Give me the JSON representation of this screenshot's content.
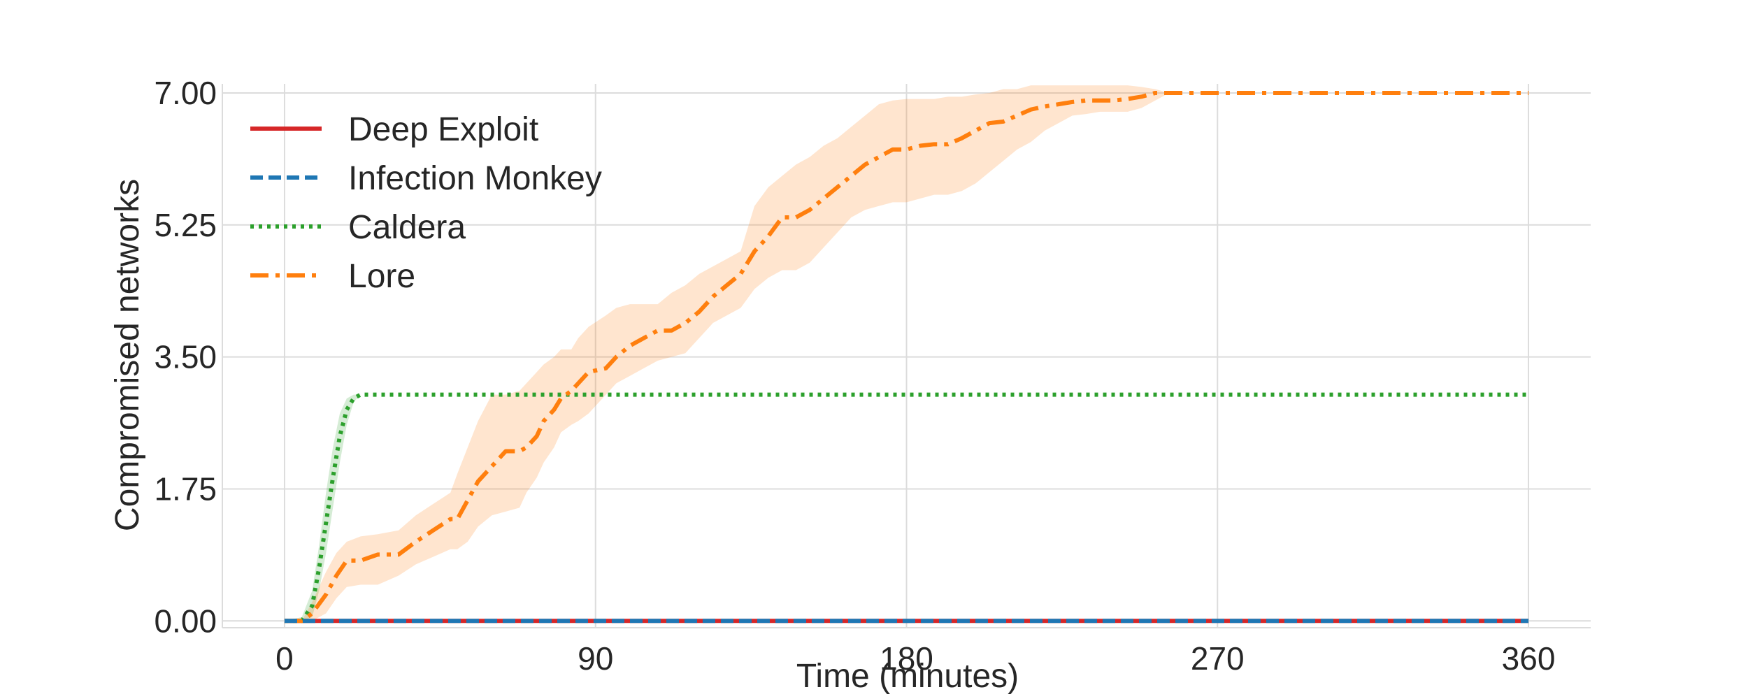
{
  "chart_data": {
    "type": "line",
    "title": "",
    "xlabel": "Time (minutes)",
    "ylabel": "Compromised networks",
    "xlim": [
      -18,
      378
    ],
    "ylim": [
      -0.09,
      7.12
    ],
    "xticks": [
      0,
      90,
      180,
      270,
      360
    ],
    "xtick_labels": [
      "0",
      "90",
      "180",
      "270",
      "360"
    ],
    "yticks": [
      0,
      1.75,
      3.5,
      5.25,
      7.0
    ],
    "ytick_labels": [
      "0.00",
      "1.75",
      "3.50",
      "5.25",
      "7.00"
    ],
    "grid": true,
    "legend_position": "top-left",
    "series": [
      {
        "name": "Deep Exploit",
        "color": "#d62728",
        "dash": "solid",
        "x": [
          0,
          360
        ],
        "y": [
          0,
          0
        ]
      },
      {
        "name": "Infection Monkey",
        "color": "#1f77b4",
        "dash": "dashed",
        "x": [
          0,
          360
        ],
        "y": [
          0,
          0
        ]
      },
      {
        "name": "Caldera",
        "color": "#2ca02c",
        "dash": "dotted",
        "x": [
          0,
          5,
          8,
          10,
          12,
          14,
          16,
          18,
          20,
          22,
          360
        ],
        "y": [
          0,
          0,
          0.2,
          0.7,
          1.3,
          1.9,
          2.45,
          2.8,
          2.95,
          3.0,
          3.0
        ],
        "band_upper": [
          0,
          0.05,
          0.4,
          1.0,
          1.7,
          2.3,
          2.75,
          2.95,
          3.0,
          3.0,
          3.0
        ],
        "band_lower": [
          0,
          0,
          0.05,
          0.4,
          0.9,
          1.5,
          2.1,
          2.6,
          2.9,
          3.0,
          3.0
        ]
      },
      {
        "name": "Lore",
        "color": "#ff7f0e",
        "dash": "dashdot",
        "x": [
          0,
          5,
          8,
          12,
          15,
          18,
          22,
          27,
          33,
          38,
          43,
          48,
          50,
          53,
          56,
          60,
          64,
          68,
          70,
          73,
          75,
          78,
          80,
          83,
          85,
          88,
          93,
          96,
          100,
          104,
          108,
          112,
          116,
          120,
          124,
          128,
          132,
          136,
          140,
          144,
          148,
          152,
          156,
          160,
          164,
          168,
          172,
          176,
          180,
          184,
          188,
          192,
          196,
          200,
          204,
          208,
          212,
          216,
          220,
          224,
          228,
          232,
          236,
          240,
          244,
          248,
          252,
          256,
          360
        ],
        "y": [
          0,
          0,
          0.1,
          0.35,
          0.6,
          0.8,
          0.8,
          0.88,
          0.88,
          1.05,
          1.2,
          1.35,
          1.35,
          1.6,
          1.85,
          2.05,
          2.25,
          2.25,
          2.3,
          2.45,
          2.65,
          2.8,
          2.95,
          3.05,
          3.15,
          3.3,
          3.35,
          3.5,
          3.65,
          3.75,
          3.85,
          3.85,
          3.95,
          4.1,
          4.3,
          4.45,
          4.6,
          4.9,
          5.1,
          5.35,
          5.35,
          5.45,
          5.6,
          5.75,
          5.9,
          6.05,
          6.15,
          6.25,
          6.25,
          6.3,
          6.32,
          6.32,
          6.4,
          6.5,
          6.6,
          6.62,
          6.7,
          6.78,
          6.82,
          6.85,
          6.88,
          6.9,
          6.9,
          6.9,
          6.92,
          6.95,
          7.0,
          7.0,
          7.0
        ],
        "band_upper": [
          0,
          0,
          0.25,
          0.65,
          0.9,
          1.05,
          1.12,
          1.15,
          1.2,
          1.4,
          1.55,
          1.7,
          1.95,
          2.3,
          2.65,
          3.0,
          3.0,
          3.05,
          3.15,
          3.3,
          3.4,
          3.5,
          3.6,
          3.6,
          3.75,
          3.9,
          4.05,
          4.15,
          4.2,
          4.2,
          4.2,
          4.35,
          4.45,
          4.6,
          4.7,
          4.8,
          4.9,
          5.5,
          5.75,
          5.9,
          6.05,
          6.15,
          6.3,
          6.4,
          6.55,
          6.7,
          6.85,
          6.9,
          6.92,
          6.92,
          6.92,
          6.95,
          6.95,
          6.98,
          7.0,
          7.05,
          7.05,
          7.1,
          7.1,
          7.1,
          7.1,
          7.1,
          7.1,
          7.1,
          7.1,
          7.08,
          7.05,
          7.0,
          7.0
        ],
        "band_lower": [
          0,
          0,
          0,
          0.1,
          0.3,
          0.45,
          0.48,
          0.48,
          0.6,
          0.75,
          0.85,
          0.95,
          0.95,
          1.05,
          1.25,
          1.4,
          1.45,
          1.5,
          1.7,
          1.9,
          2.1,
          2.3,
          2.5,
          2.6,
          2.65,
          2.75,
          3.0,
          3.15,
          3.25,
          3.35,
          3.45,
          3.5,
          3.55,
          3.75,
          3.95,
          4.05,
          4.15,
          4.4,
          4.55,
          4.65,
          4.65,
          4.75,
          4.95,
          5.15,
          5.35,
          5.45,
          5.5,
          5.55,
          5.55,
          5.6,
          5.65,
          5.65,
          5.7,
          5.8,
          5.95,
          6.1,
          6.25,
          6.35,
          6.5,
          6.6,
          6.7,
          6.72,
          6.75,
          6.75,
          6.75,
          6.8,
          6.9,
          7.0,
          7.0
        ]
      }
    ]
  }
}
